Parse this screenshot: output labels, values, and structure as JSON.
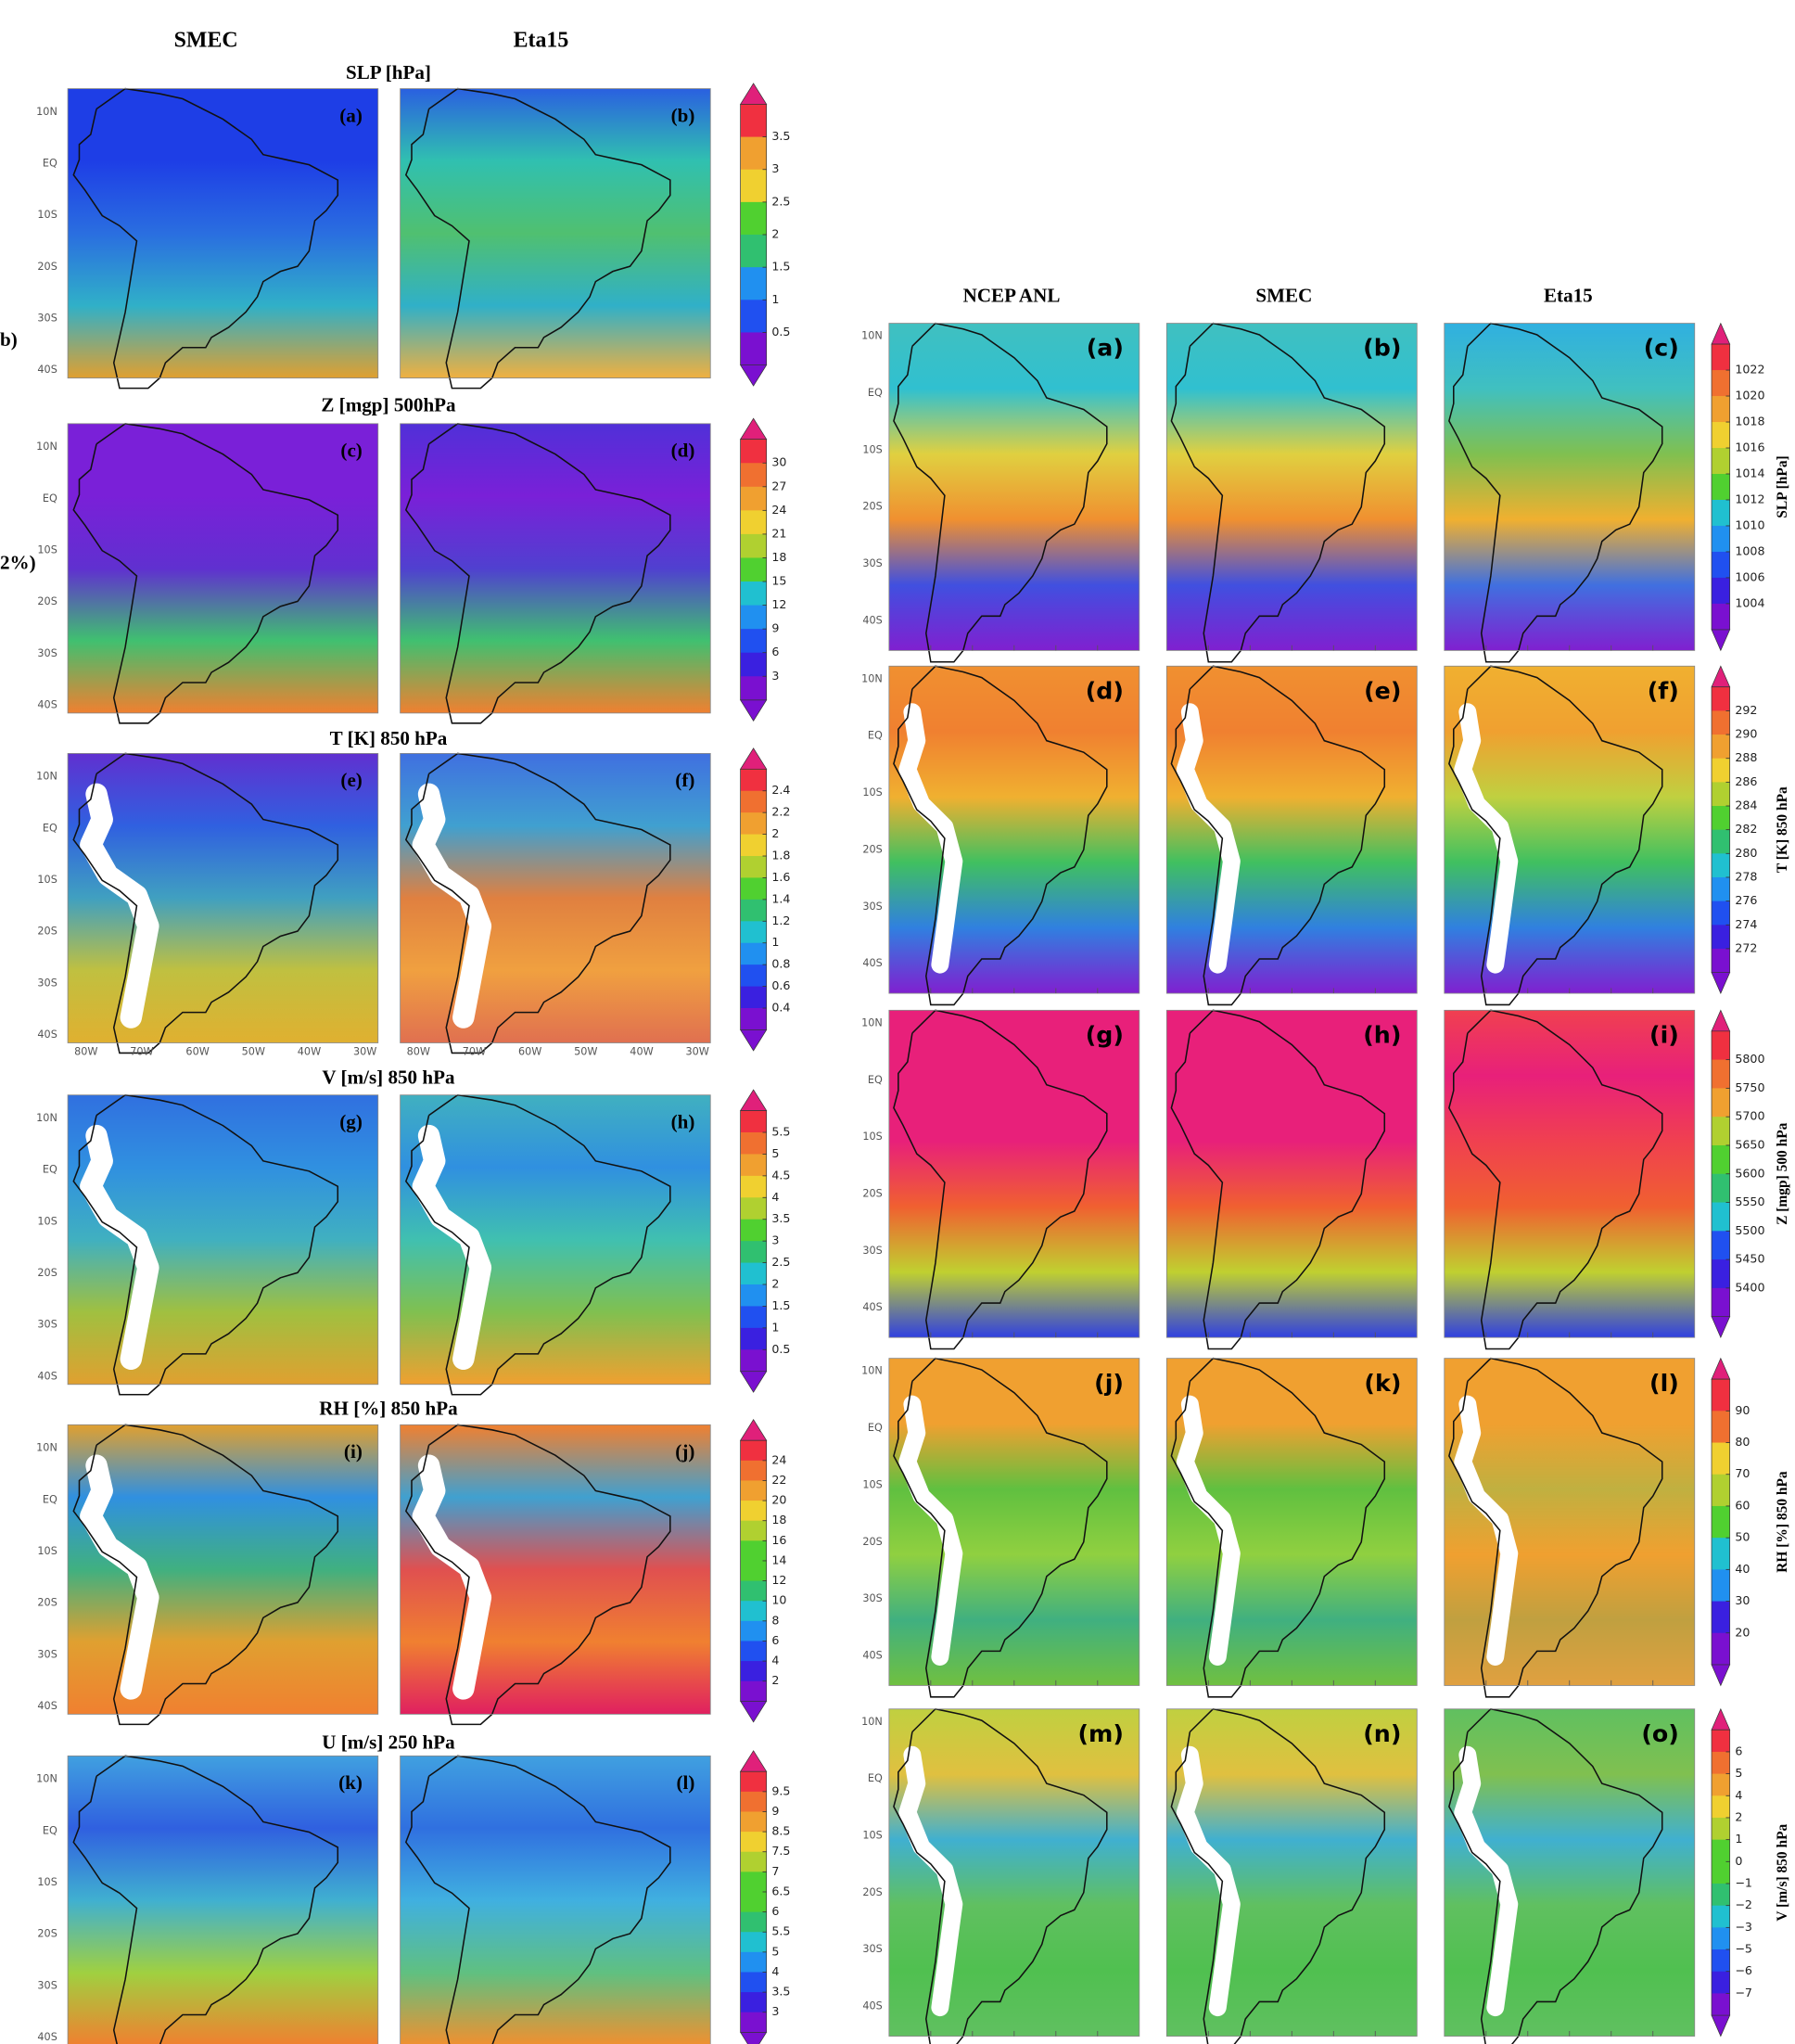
{
  "left_figure": {
    "column_headers": [
      "SMEC",
      "Eta15"
    ],
    "margin_fragments": [
      "b)",
      "2%)"
    ],
    "latitude_labels": [
      "10N",
      "EQ",
      "10S",
      "20S",
      "30S",
      "40S"
    ],
    "longitude_labels": [
      "80W",
      "70W",
      "60W",
      "50W",
      "40W",
      "30W"
    ],
    "rows": [
      {
        "title": "SLP [hPa]",
        "panel_labels": [
          "(a)",
          "(b)"
        ],
        "colorbar_ticks": [
          "3.5",
          "3",
          "2.5",
          "2",
          "1.5",
          "1",
          "0.5"
        ]
      },
      {
        "title": "Z [mgp] 500hPa",
        "panel_labels": [
          "(c)",
          "(d)"
        ],
        "colorbar_ticks": [
          "30",
          "27",
          "24",
          "21",
          "18",
          "15",
          "12",
          "9",
          "6",
          "3"
        ]
      },
      {
        "title": "T [K] 850 hPa",
        "panel_labels": [
          "(e)",
          "(f)"
        ],
        "colorbar_ticks": [
          "2.4",
          "2.2",
          "2",
          "1.8",
          "1.6",
          "1.4",
          "1.2",
          "1",
          "0.8",
          "0.6",
          "0.4"
        ]
      },
      {
        "title": "V [m/s] 850 hPa",
        "panel_labels": [
          "(g)",
          "(h)"
        ],
        "colorbar_ticks": [
          "5.5",
          "5",
          "4.5",
          "4",
          "3.5",
          "3",
          "2.5",
          "2",
          "1.5",
          "1",
          "0.5"
        ]
      },
      {
        "title": "RH [%] 850 hPa",
        "panel_labels": [
          "(i)",
          "(j)"
        ],
        "colorbar_ticks": [
          "24",
          "22",
          "20",
          "18",
          "16",
          "14",
          "12",
          "10",
          "8",
          "6",
          "4",
          "2"
        ]
      },
      {
        "title": "U [m/s] 250 hPa",
        "panel_labels": [
          "(k)",
          "(l)"
        ],
        "colorbar_ticks": [
          "9.5",
          "9",
          "8.5",
          "7.5",
          "7",
          "6.5",
          "6",
          "5.5",
          "5",
          "4",
          "3.5",
          "3"
        ]
      }
    ]
  },
  "right_figure": {
    "column_headers": [
      "NCEP ANL",
      "SMEC",
      "Eta15"
    ],
    "latitude_labels": [
      "10N",
      "EQ",
      "10S",
      "20S",
      "30S",
      "40S"
    ],
    "rows": [
      {
        "title": "SLP [hPa]",
        "panel_labels": [
          "(a)",
          "(b)",
          "(c)"
        ],
        "colorbar_ticks": [
          "1022",
          "1020",
          "1018",
          "1016",
          "1014",
          "1012",
          "1010",
          "1008",
          "1006",
          "1004"
        ]
      },
      {
        "title": "T [K] 850 hPa",
        "panel_labels": [
          "(d)",
          "(e)",
          "(f)"
        ],
        "colorbar_ticks": [
          "292",
          "290",
          "288",
          "286",
          "284",
          "282",
          "280",
          "278",
          "276",
          "274",
          "272"
        ]
      },
      {
        "title": "Z [mgp] 500 hPa",
        "panel_labels": [
          "(g)",
          "(h)",
          "(i)"
        ],
        "colorbar_ticks": [
          "5800",
          "5750",
          "5700",
          "5650",
          "5600",
          "5550",
          "5500",
          "5450",
          "5400"
        ]
      },
      {
        "title": "RH [%] 850 hPa",
        "panel_labels": [
          "(j)",
          "(k)",
          "(l)"
        ],
        "colorbar_ticks": [
          "90",
          "80",
          "70",
          "60",
          "50",
          "40",
          "30",
          "20"
        ]
      },
      {
        "title": "V [m/s] 850 hPa",
        "panel_labels": [
          "(m)",
          "(n)",
          "(o)"
        ],
        "colorbar_ticks": [
          "6",
          "5",
          "4",
          "2",
          "1",
          "0",
          "−1",
          "−2",
          "−3",
          "−5",
          "−6",
          "−7"
        ]
      }
    ]
  }
}
